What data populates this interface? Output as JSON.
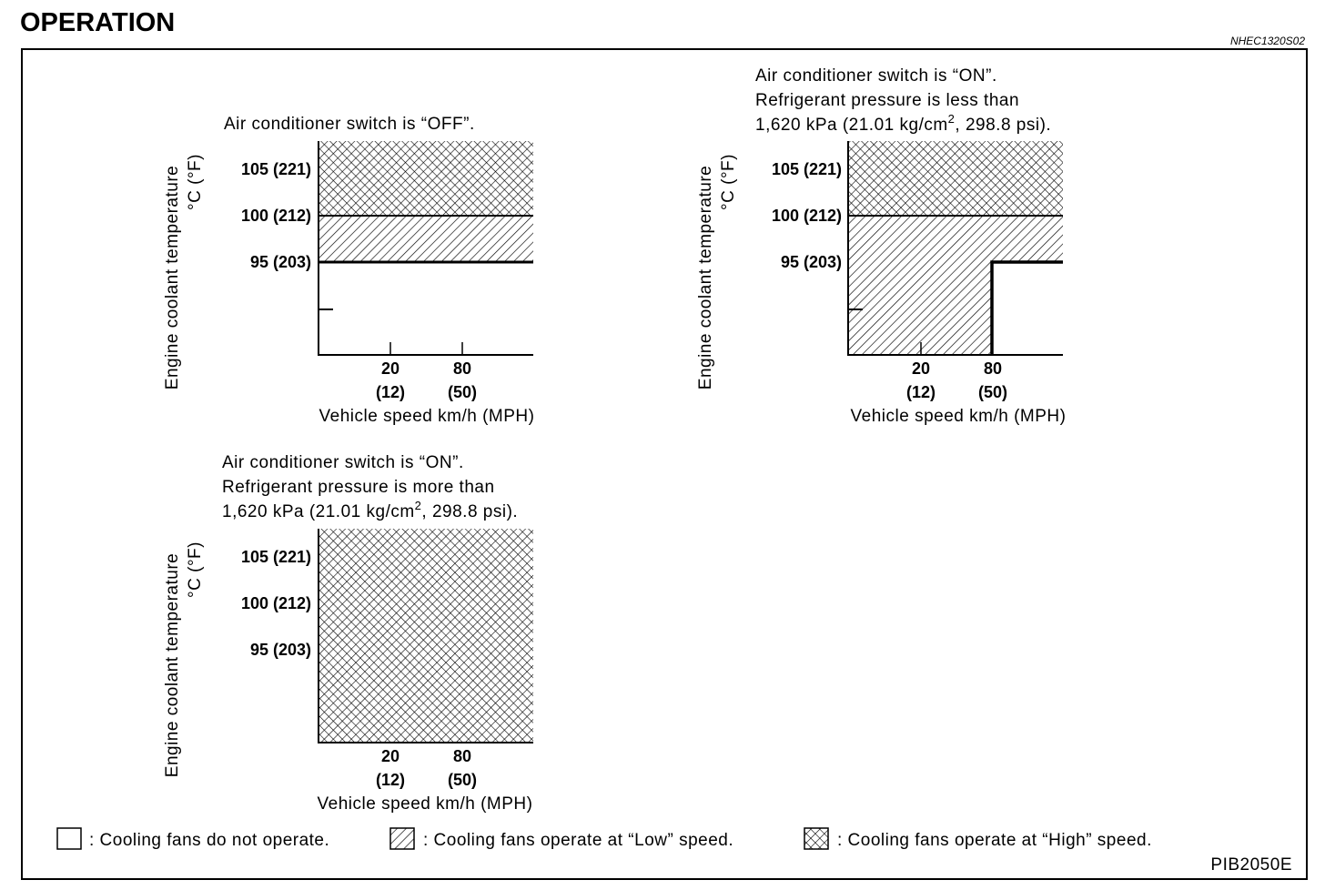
{
  "heading": "OPERATION",
  "doc_id": "NHEC1320S02",
  "figure_id": "PIB2050E",
  "colors": {
    "ink": "#000000",
    "background": "#ffffff"
  },
  "y_axis": {
    "label_line1": "Engine coolant temperature",
    "label_line2": "°C (°F)",
    "ticks": [
      "105 (221)",
      "100 (212)",
      "95 (203)"
    ]
  },
  "x_axis": {
    "label": "Vehicle speed km/h (MPH)",
    "ticks": [
      {
        "top": "20",
        "bottom": "(12)"
      },
      {
        "top": "80",
        "bottom": "(50)"
      }
    ]
  },
  "charts": [
    {
      "title_lines": [
        "Air conditioner switch is “OFF”."
      ],
      "zones": "High above 100 °C, Low 95–100 °C, none below 95 °C"
    },
    {
      "title_lines": [
        "Air conditioner switch is “ON”.",
        "Refrigerant pressure is less than",
        "1,620 kPa (21.01 kg/cm",
        "2",
        ", 298.8 psi)."
      ],
      "zones": "High above 100 °C; Low below 100 °C up to 80 km/h, and 95–100 °C above 80 km/h; none below 95 °C above 80 km/h"
    },
    {
      "title_lines": [
        "Air conditioner switch is “ON”.",
        "Refrigerant pressure is more than",
        "1,620 kPa (21.01 kg/cm",
        "2",
        ", 298.8 psi)."
      ],
      "zones": "High at all temperatures and speeds"
    }
  ],
  "legend": [
    {
      "label": ": Cooling fans do not operate.",
      "icon": "empty-box"
    },
    {
      "label": ": Cooling fans operate at “Low” speed.",
      "icon": "hatched-box"
    },
    {
      "label": ": Cooling fans operate at “High” speed.",
      "icon": "crosshatched-box"
    }
  ]
}
